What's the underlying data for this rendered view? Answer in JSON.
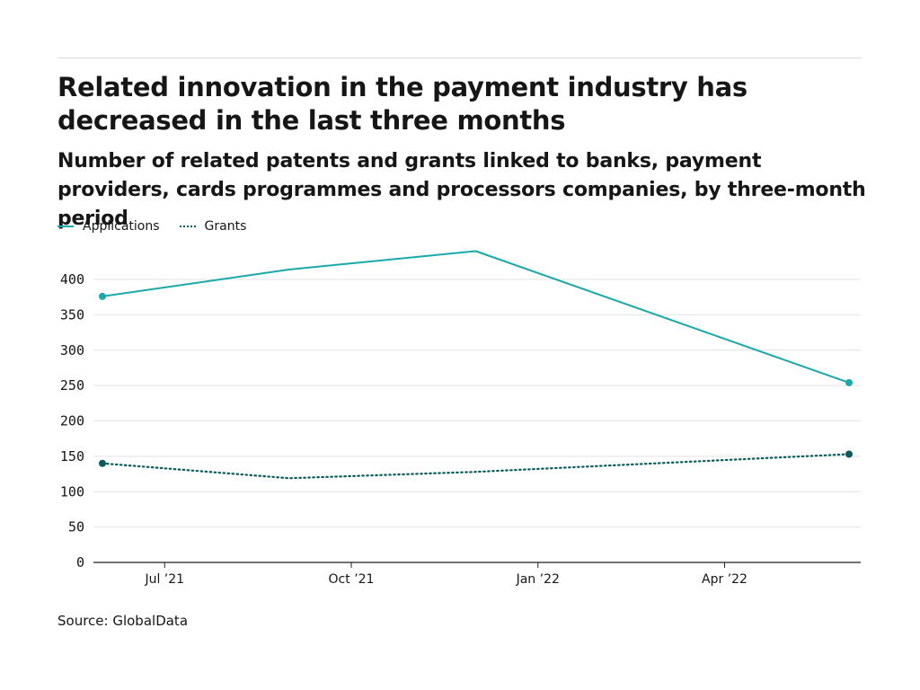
{
  "title": "Related innovation in the payment industry has decreased in the last three months",
  "subtitle": "Number of related patents and grants linked to banks, payment providers, cards programmes and processors companies, by three-month period",
  "source": "Source: GlobalData",
  "colors": {
    "applications": "#1aa8aa",
    "grants": "#0a5b5e",
    "grid": "#e3e3e3",
    "axis": "#222222",
    "text": "#161616"
  },
  "chart_data": {
    "type": "line",
    "x": [
      "Jun 2021",
      "Sep 2021",
      "Dec 2021",
      "Jun 2022"
    ],
    "x_positions_months": [
      0,
      3,
      6,
      12
    ],
    "xticks": [
      {
        "label": "Jul ’21",
        "month": 1
      },
      {
        "label": "Oct ’21",
        "month": 4
      },
      {
        "label": "Jan ’22",
        "month": 7
      },
      {
        "label": "Apr ’22",
        "month": 10
      }
    ],
    "yticks": [
      0,
      50,
      100,
      150,
      200,
      250,
      300,
      350,
      400
    ],
    "ylim": [
      0,
      440
    ],
    "xlim_months": [
      0,
      12
    ],
    "grid": true,
    "legend": "top-left",
    "series": [
      {
        "name": "Applications",
        "key": "applications",
        "style": "solid",
        "values": [
          376,
          414,
          440,
          254
        ]
      },
      {
        "name": "Grants",
        "key": "grants",
        "style": "dotted",
        "values": [
          140,
          119,
          128,
          153
        ]
      }
    ]
  }
}
